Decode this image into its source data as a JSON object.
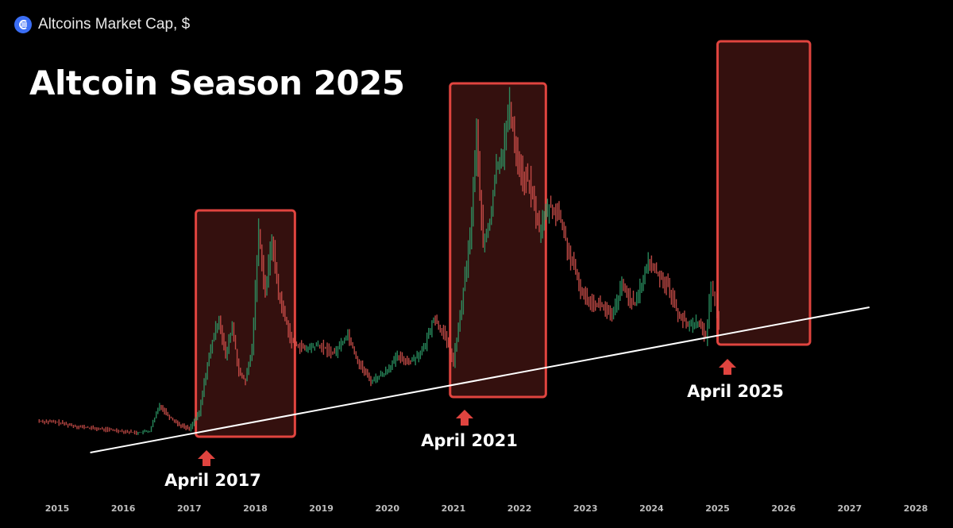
{
  "header": {
    "label": "Altcoins Market Cap, $",
    "icon": "exchange-logo-icon",
    "icon_color": "#3b6ef5"
  },
  "chart_data": {
    "type": "line",
    "title": "Altcoin Season 2025",
    "xlabel": "",
    "ylabel": "",
    "x_ticks": [
      "2015",
      "2016",
      "2017",
      "2018",
      "2019",
      "2020",
      "2021",
      "2022",
      "2023",
      "2024",
      "2025",
      "2026",
      "2027",
      "2028"
    ],
    "xlim": [
      2014.6,
      2028.6
    ],
    "series": [
      {
        "values": [
          [
            2014.7,
            530
          ],
          [
            2015.0,
            532
          ],
          [
            2015.3,
            537
          ],
          [
            2015.6,
            540
          ],
          [
            2015.9,
            542
          ],
          [
            2016.2,
            545
          ],
          [
            2016.4,
            543
          ],
          [
            2016.55,
            510
          ],
          [
            2016.7,
            525
          ],
          [
            2016.85,
            535
          ],
          [
            2017.0,
            540
          ],
          [
            2017.15,
            520
          ],
          [
            2017.25,
            470
          ],
          [
            2017.35,
            430
          ],
          [
            2017.45,
            400
          ],
          [
            2017.55,
            450
          ],
          [
            2017.65,
            410
          ],
          [
            2017.75,
            470
          ],
          [
            2017.85,
            480
          ],
          [
            2017.95,
            440
          ],
          [
            2018.05,
            290
          ],
          [
            2018.15,
            370
          ],
          [
            2018.25,
            300
          ],
          [
            2018.35,
            370
          ],
          [
            2018.45,
            400
          ],
          [
            2018.55,
            430
          ],
          [
            2018.75,
            440
          ],
          [
            2018.95,
            435
          ],
          [
            2019.2,
            445
          ],
          [
            2019.4,
            420
          ],
          [
            2019.55,
            455
          ],
          [
            2019.75,
            480
          ],
          [
            2019.95,
            470
          ],
          [
            2020.15,
            450
          ],
          [
            2020.35,
            455
          ],
          [
            2020.55,
            440
          ],
          [
            2020.7,
            400
          ],
          [
            2020.85,
            420
          ],
          [
            2021.0,
            455
          ],
          [
            2021.1,
            400
          ],
          [
            2021.25,
            300
          ],
          [
            2021.35,
            170
          ],
          [
            2021.45,
            310
          ],
          [
            2021.55,
            280
          ],
          [
            2021.65,
            210
          ],
          [
            2021.75,
            190
          ],
          [
            2021.85,
            135
          ],
          [
            2021.95,
            190
          ],
          [
            2022.05,
            225
          ],
          [
            2022.15,
            230
          ],
          [
            2022.3,
            290
          ],
          [
            2022.45,
            260
          ],
          [
            2022.6,
            270
          ],
          [
            2022.75,
            320
          ],
          [
            2022.95,
            370
          ],
          [
            2023.1,
            380
          ],
          [
            2023.25,
            385
          ],
          [
            2023.4,
            400
          ],
          [
            2023.55,
            360
          ],
          [
            2023.75,
            385
          ],
          [
            2023.95,
            330
          ],
          [
            2024.1,
            345
          ],
          [
            2024.25,
            360
          ],
          [
            2024.4,
            395
          ],
          [
            2024.55,
            410
          ],
          [
            2024.7,
            405
          ],
          [
            2024.82,
            425
          ],
          [
            2024.9,
            360
          ],
          [
            2024.96,
            380
          ],
          [
            2025.05,
            420
          ]
        ]
      }
    ],
    "trendline": [
      [
        2015.5,
        570
      ],
      [
        2027.3,
        387
      ]
    ],
    "annotations": [
      {
        "label": "April 2017",
        "box_x": [
          2017.1,
          2018.6
        ]
      },
      {
        "label": "April 2021",
        "box_x": [
          2020.95,
          2022.4
        ]
      },
      {
        "label": "April 2025",
        "box_x": [
          2025.0,
          2026.4
        ]
      }
    ],
    "colors": {
      "box": "#e0443f",
      "box_fill": "#3a1210",
      "arrow": "#e0443f",
      "trendline": "#ffffff",
      "candle_up": "#2e9e6a",
      "candle_down": "#d9534f"
    }
  }
}
